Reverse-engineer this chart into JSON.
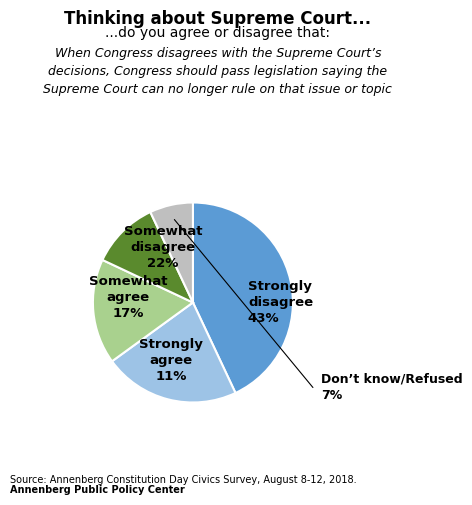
{
  "title": "Thinking about Supreme Court...",
  "subtitle": "...do you agree or disagree that:",
  "italic_text": "When Congress disagrees with the Supreme Court’s\ndecisions, Congress should pass legislation saying the\nSupreme Court can no longer rule on that issue or topic",
  "slices": [
    {
      "label": "Strongly\ndisagree\n43%",
      "value": 43,
      "color": "#5B9BD5"
    },
    {
      "label": "Somewhat\ndisagree\n22%",
      "value": 22,
      "color": "#9DC3E6"
    },
    {
      "label": "Somewhat\nagree\n17%",
      "value": 17,
      "color": "#A9D18E"
    },
    {
      "label": "Strongly\nagree\n11%",
      "value": 11,
      "color": "#5A8A2D"
    },
    {
      "label": "Don’t know/Refused\n7%",
      "value": 7,
      "color": "#BFBFBF"
    }
  ],
  "source_text": "Source: Annenberg Constitution Day Civics Survey, August 8-12, 2018.",
  "source_bold": "Annenberg Public Policy Center",
  "background_color": "#FFFFFF"
}
